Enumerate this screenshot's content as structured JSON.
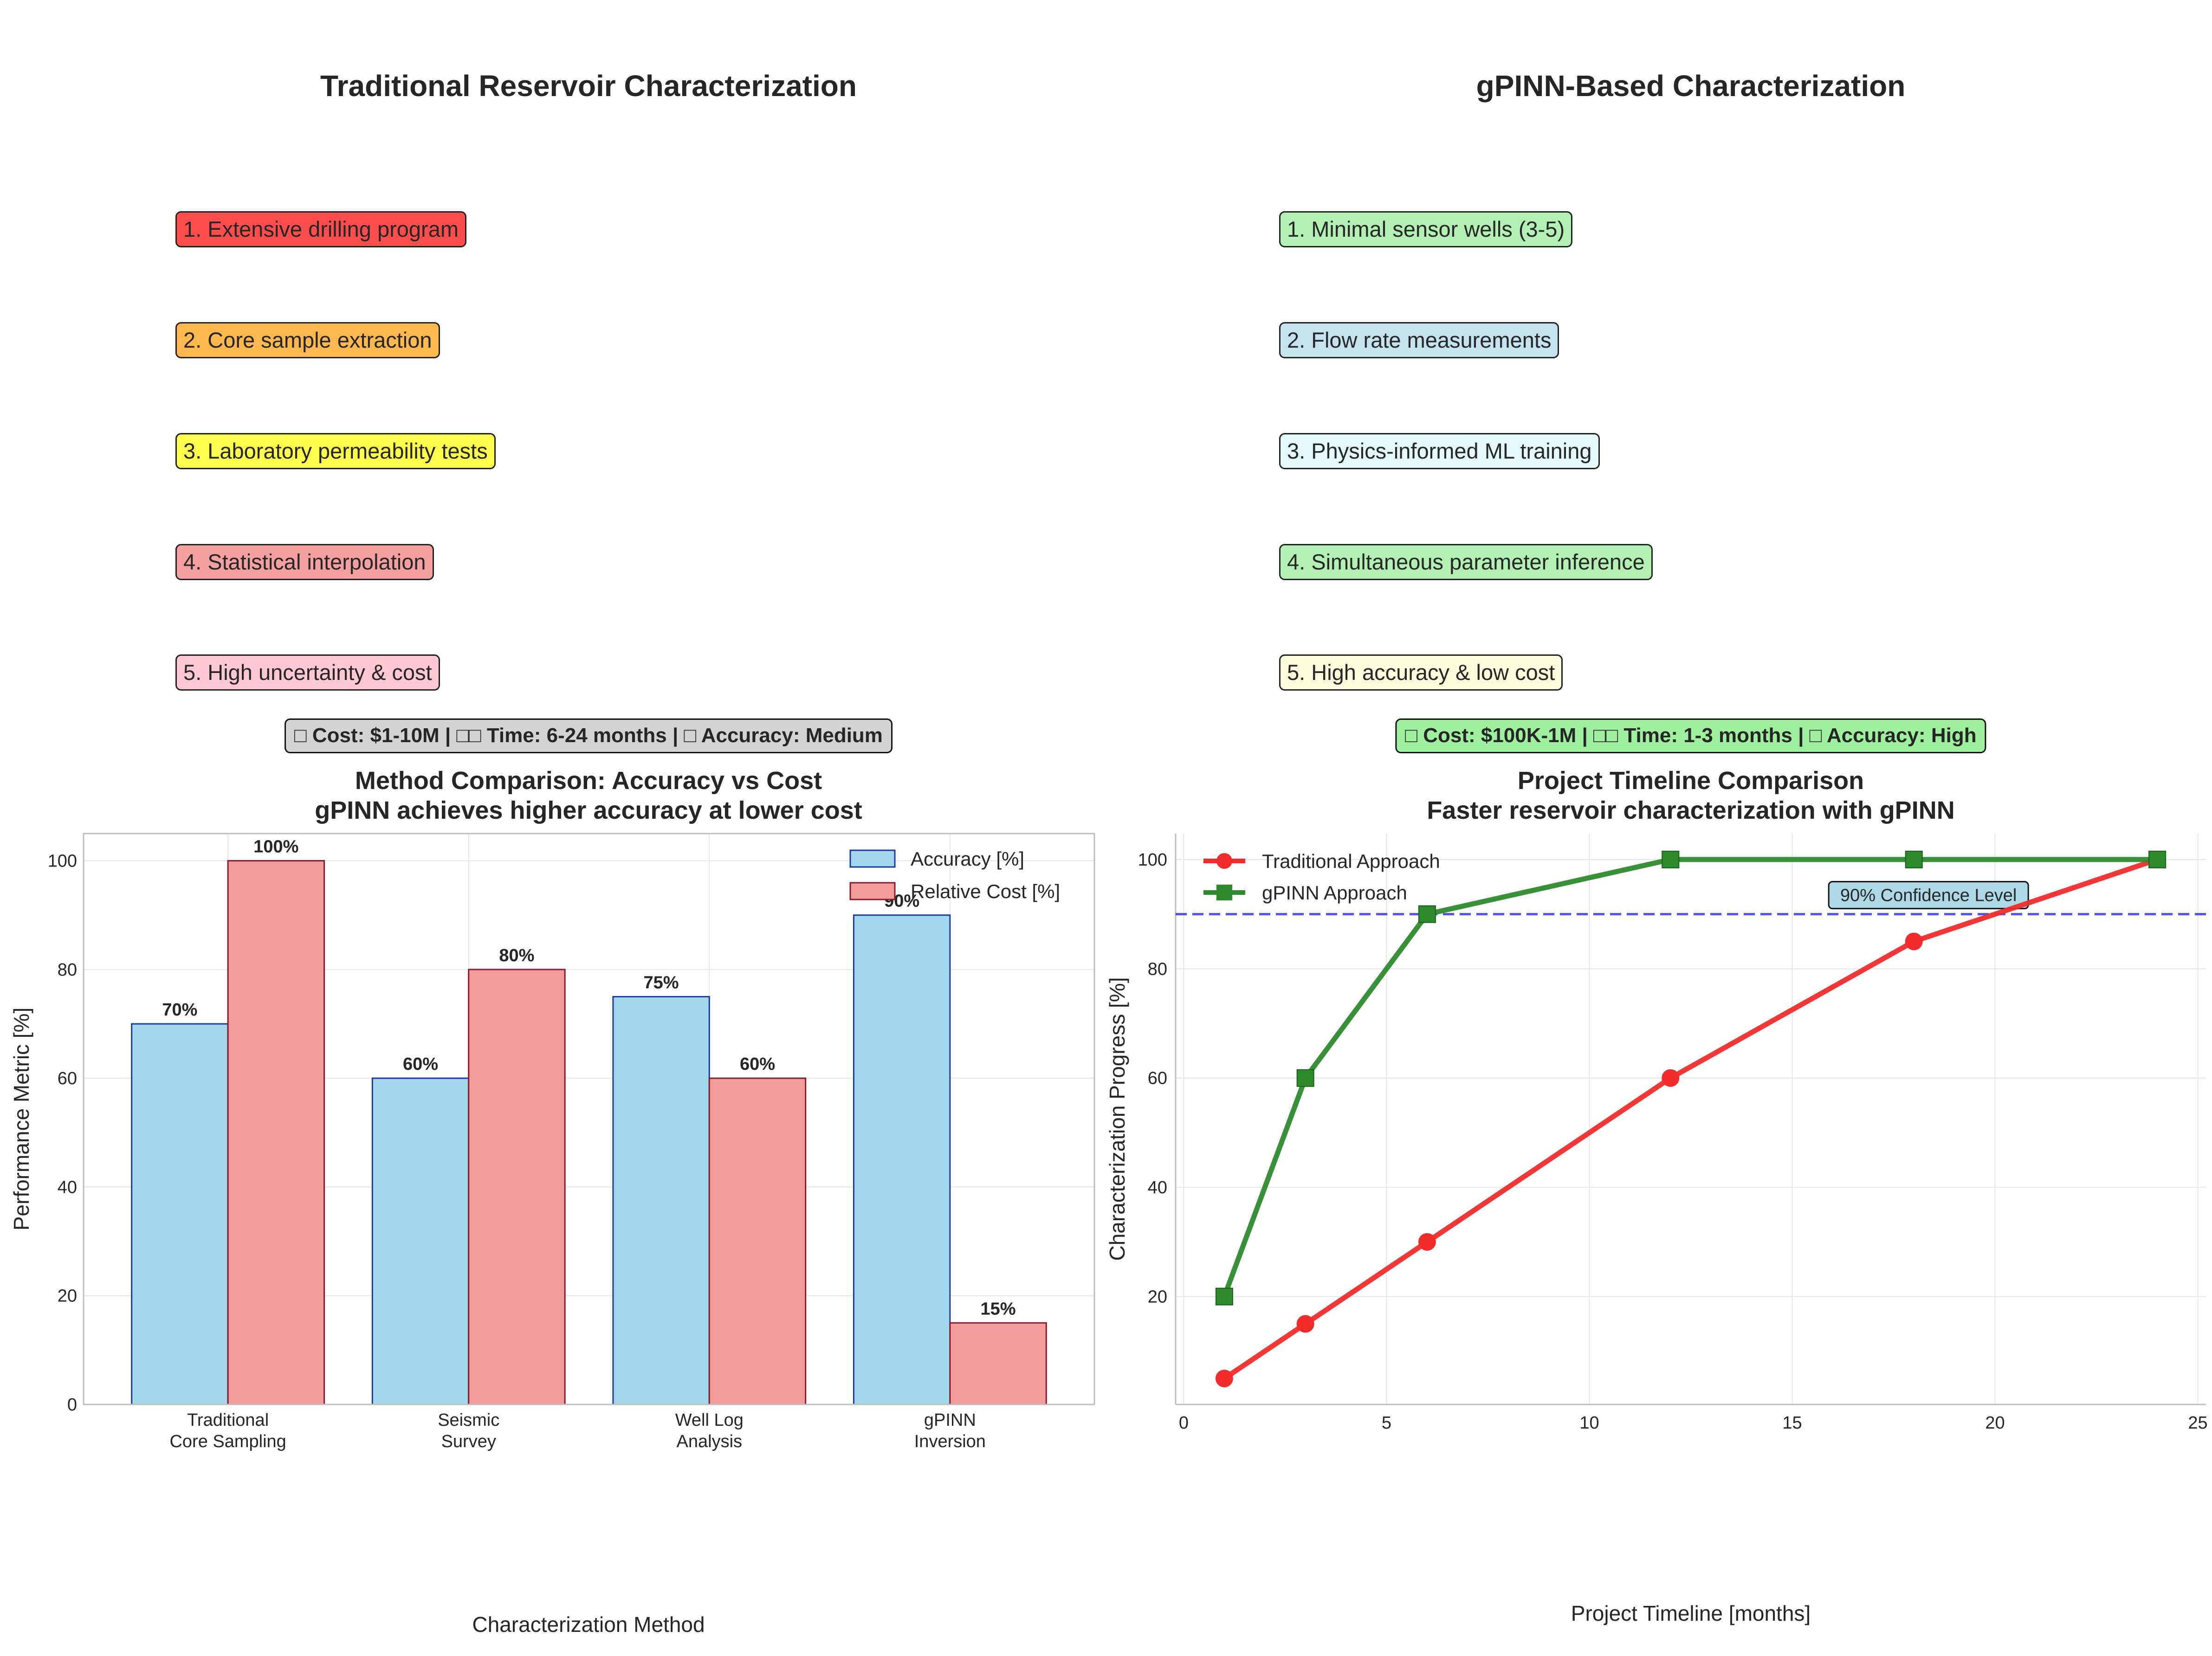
{
  "traditional_panel": {
    "title": "Traditional Reservoir Characterization",
    "steps": [
      {
        "label": "1. Extensive drilling program",
        "color": "#ff4d4d"
      },
      {
        "label": "2. Core sample extraction",
        "color": "#ffb84d"
      },
      {
        "label": "3. Laboratory permeability tests",
        "color": "#ffff4d"
      },
      {
        "label": "4. Statistical interpolation",
        "color": "#f4a0a0"
      },
      {
        "label": "5. High uncertainty & cost",
        "color": "#ffc8d2"
      }
    ],
    "summary": "□ Cost: $1-10M | □□ Time: 6-24 months | □ Accuracy: Medium",
    "summary_color": "#d3d3d3"
  },
  "gpinn_panel": {
    "title": "gPINN-Based Characterization",
    "steps": [
      {
        "label": "1. Minimal sensor wells (3-5)",
        "color": "#b3f0b3"
      },
      {
        "label": "2. Flow rate measurements",
        "color": "#c5e3ef"
      },
      {
        "label": "3. Physics-informed ML training",
        "color": "#e4fafa"
      },
      {
        "label": "4. Simultaneous parameter inference",
        "color": "#b3f0b3"
      },
      {
        "label": "5. High accuracy & low cost",
        "color": "#fbfbdc"
      }
    ],
    "summary": "□ Cost: $100K-1M | □□ Time: 1-3 months | □ Accuracy: High",
    "summary_color": "#9ef09e"
  },
  "chart_data": [
    {
      "type": "bar",
      "title": "Method Comparison: Accuracy vs Cost",
      "subtitle": "gPINN achieves higher accuracy at lower cost",
      "xlabel": "Characterization Method",
      "ylabel": "Performance Metric [%]",
      "categories": [
        [
          "Traditional",
          "Core Sampling"
        ],
        [
          "Seismic",
          "Survey"
        ],
        [
          "Well Log",
          "Analysis"
        ],
        [
          "gPINN",
          "Inversion"
        ]
      ],
      "series": [
        {
          "name": "Accuracy [%]",
          "values": [
            70,
            60,
            75,
            90
          ],
          "color": "#a2d7ee",
          "edge": "#1f3a9e"
        },
        {
          "name": "Relative Cost [%]",
          "values": [
            100,
            80,
            60,
            15
          ],
          "color": "#f29b9b",
          "edge": "#8b1a2a"
        }
      ],
      "data_labels": [
        "70%",
        "100%",
        "60%",
        "80%",
        "75%",
        "60%",
        "90%",
        "15%"
      ],
      "ylim": [
        0,
        105
      ],
      "yticks": [
        0,
        20,
        40,
        60,
        80,
        100
      ],
      "grid": true,
      "legend": "top-right"
    },
    {
      "type": "line",
      "title": "Project Timeline Comparison",
      "subtitle": "Faster reservoir characterization with gPINN",
      "xlabel": "Project Timeline [months]",
      "ylabel": "Characterization Progress [%]",
      "series": [
        {
          "name": "Traditional Approach",
          "x": [
            1,
            3,
            6,
            12,
            18,
            24
          ],
          "y": [
            5,
            15,
            30,
            60,
            85,
            100
          ],
          "color": "#f22b2b",
          "marker": "circle"
        },
        {
          "name": "gPINN Approach",
          "x": [
            1,
            3,
            6,
            12,
            18,
            24
          ],
          "y": [
            20,
            60,
            90,
            100,
            100,
            100
          ],
          "color": "#2d8a2d",
          "marker": "square"
        }
      ],
      "reference_line": {
        "y": 90,
        "label": "90% Confidence Level",
        "color": "#3333ff"
      },
      "xlim": [
        -0.2,
        25.2
      ],
      "ylim": [
        0.25,
        104.75
      ],
      "xticks": [
        0,
        5,
        10,
        15,
        20,
        25
      ],
      "yticks": [
        20,
        40,
        60,
        80,
        100
      ],
      "grid": true,
      "legend": "top-left"
    }
  ]
}
